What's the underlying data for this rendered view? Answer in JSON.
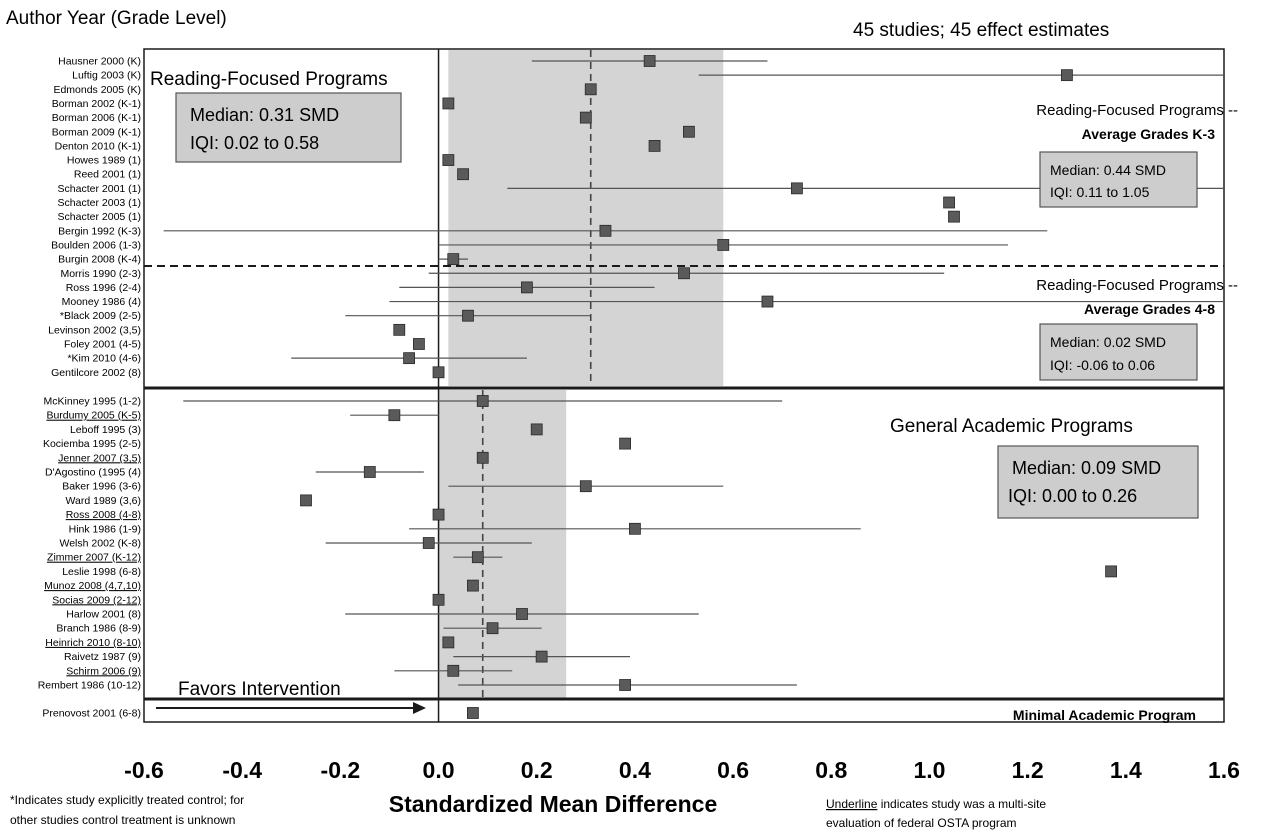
{
  "header": {
    "left_title": "Author Year (Grade Level)",
    "right_title": "45 studies; 45 effect estimates"
  },
  "chart_data": {
    "type": "forest",
    "xlabel": "Standardized Mean Difference",
    "xlim": [
      -0.6,
      1.6
    ],
    "xticks": [
      "-0.6",
      "-0.4",
      "-0.2",
      "0.0",
      "0.2",
      "0.4",
      "0.6",
      "0.8",
      "1.0",
      "1.2",
      "1.4",
      "1.6"
    ],
    "favors_label": "Favors Intervention",
    "sections": [
      {
        "name": "Reading-Focused Programs",
        "median_label": "Median:  0.31 SMD",
        "iqi_label": "IQI: 0.02 to 0.58",
        "median": 0.31,
        "iqi": [
          0.02,
          0.58
        ],
        "subgroups": [
          {
            "title": "Reading-Focused Programs --",
            "subtitle": "Average Grades K-3",
            "median_label": "Median: 0.44 SMD",
            "iqi_label": "IQI: 0.11 to 1.05"
          },
          {
            "title": "Reading-Focused Programs --",
            "subtitle": "Average Grades 4-8",
            "median_label": "Median: 0.02 SMD",
            "iqi_label": "IQI: -0.06 to 0.06"
          }
        ],
        "studies": [
          {
            "label": "Hausner 2000 (K)",
            "effect": 0.43,
            "ci": [
              0.19,
              0.67
            ]
          },
          {
            "label": "Luftig 2003 (K)",
            "effect": 1.28,
            "ci": [
              0.53,
              1.6
            ]
          },
          {
            "label": "Edmonds 2005 (K)",
            "effect": 0.31,
            "ci": null
          },
          {
            "label": "Borman 2002 (K-1)",
            "effect": 0.02,
            "ci": null
          },
          {
            "label": "Borman 2006 (K-1)",
            "effect": 0.3,
            "ci": null
          },
          {
            "label": "Borman 2009 (K-1)",
            "effect": 0.51,
            "ci": null
          },
          {
            "label": "Denton 2010 (K-1)",
            "effect": 0.44,
            "ci": null
          },
          {
            "label": "Howes 1989 (1)",
            "effect": 0.02,
            "ci": null
          },
          {
            "label": "Reed 2001 (1)",
            "effect": 0.05,
            "ci": null
          },
          {
            "label": "Schacter 2001 (1)",
            "effect": 0.73,
            "ci": [
              0.14,
              1.6
            ]
          },
          {
            "label": "Schacter 2003 (1)",
            "effect": 1.04,
            "ci": null
          },
          {
            "label": "Schacter 2005 (1)",
            "effect": 1.05,
            "ci": null
          },
          {
            "label": "Bergin 1992 (K-3)",
            "effect": 0.34,
            "ci": [
              -0.56,
              1.24
            ]
          },
          {
            "label": "Boulden 2006 (1-3)",
            "effect": 0.58,
            "ci": [
              0.0,
              1.16
            ]
          },
          {
            "label": "Burgin 2008 (K-4)",
            "effect": 0.03,
            "ci": [
              0.0,
              0.06
            ]
          },
          {
            "label": "Morris 1990 (2-3)",
            "effect": 0.5,
            "ci": [
              -0.02,
              1.03
            ]
          },
          {
            "label": "Ross 1996 (2-4)",
            "effect": 0.18,
            "ci": [
              -0.08,
              0.44
            ]
          },
          {
            "label": "Mooney 1986 (4)",
            "effect": 0.67,
            "ci": [
              -0.1,
              1.6
            ]
          },
          {
            "label": "*Black 2009 (2-5)",
            "effect": 0.06,
            "ci": [
              -0.19,
              0.31
            ]
          },
          {
            "label": "Levinson 2002 (3,5)",
            "effect": -0.08,
            "ci": null
          },
          {
            "label": "Foley 2001 (4-5)",
            "effect": -0.04,
            "ci": null
          },
          {
            "label": "*Kim 2010 (4-6)",
            "effect": -0.06,
            "ci": [
              -0.3,
              0.18
            ]
          },
          {
            "label": "Gentilcore 2002 (8)",
            "effect": 0.0,
            "ci": null
          }
        ]
      },
      {
        "name": "General Academic Programs",
        "median_label": "Median: 0.09 SMD",
        "iqi_label": "IQI: 0.00 to 0.26",
        "median": 0.09,
        "iqi": [
          0.0,
          0.26
        ],
        "studies": [
          {
            "label": "McKinney 1995 (1-2)",
            "effect": 0.09,
            "ci": [
              -0.52,
              0.7
            ],
            "underline": false
          },
          {
            "label": "Burdumy 2005 (K-5)",
            "effect": -0.09,
            "ci": [
              -0.18,
              0.0
            ],
            "underline": true
          },
          {
            "label": "Leboff 1995 (3)",
            "effect": 0.2,
            "ci": null,
            "underline": false
          },
          {
            "label": "Kociemba 1995 (2-5)",
            "effect": 0.38,
            "ci": null,
            "underline": false
          },
          {
            "label": "Jenner 2007 (3,5)",
            "effect": 0.09,
            "ci": null,
            "underline": true
          },
          {
            "label": "D'Agostino (1995 (4)",
            "effect": -0.14,
            "ci": [
              -0.25,
              -0.03
            ],
            "underline": false
          },
          {
            "label": "Baker 1996 (3-6)",
            "effect": 0.3,
            "ci": [
              0.02,
              0.58
            ],
            "underline": false
          },
          {
            "label": "Ward 1989 (3,6)",
            "effect": -0.27,
            "ci": null,
            "underline": false
          },
          {
            "label": "Ross 2008 (4-8)",
            "effect": 0.0,
            "ci": null,
            "underline": true
          },
          {
            "label": "Hink 1986 (1-9)",
            "effect": 0.4,
            "ci": [
              -0.06,
              0.86
            ],
            "underline": false
          },
          {
            "label": "Welsh 2002 (K-8)",
            "effect": -0.02,
            "ci": [
              -0.23,
              0.19
            ],
            "underline": false
          },
          {
            "label": "Zimmer 2007 (K-12)",
            "effect": 0.08,
            "ci": [
              0.03,
              0.13
            ],
            "underline": true
          },
          {
            "label": "Leslie 1998 (6-8)",
            "effect": 1.37,
            "ci": null,
            "underline": false
          },
          {
            "label": "Munoz 2008 (4,7,10)",
            "effect": 0.07,
            "ci": null,
            "underline": true
          },
          {
            "label": "Socias 2009 (2-12)",
            "effect": 0.0,
            "ci": null,
            "underline": true
          },
          {
            "label": "Harlow 2001 (8)",
            "effect": 0.17,
            "ci": [
              -0.19,
              0.53
            ],
            "underline": false
          },
          {
            "label": "Branch 1986 (8-9)",
            "effect": 0.11,
            "ci": [
              0.01,
              0.21
            ],
            "underline": false
          },
          {
            "label": "Heinrich 2010 (8-10)",
            "effect": 0.02,
            "ci": null,
            "underline": true
          },
          {
            "label": "Raivetz 1987 (9)",
            "effect": 0.21,
            "ci": [
              0.03,
              0.39
            ],
            "underline": false
          },
          {
            "label": "Schirm 2006 (9)",
            "effect": 0.03,
            "ci": [
              -0.09,
              0.15
            ],
            "underline": true
          },
          {
            "label": "Rembert 1986 (10-12)",
            "effect": 0.38,
            "ci": [
              0.04,
              0.73
            ],
            "underline": false
          }
        ]
      },
      {
        "name": "Minimal Academic Program",
        "studies": [
          {
            "label": "Prenovost 2001 (6-8)",
            "effect": 0.07,
            "ci": null
          }
        ]
      }
    ]
  },
  "footnotes": {
    "left_line1": "*Indicates study explicitly treated control; for",
    "left_line2": "other  studies control treatment  is unknown",
    "right_underlined": "Underline",
    "right_line1_rest": " indicates study was a multi-site",
    "right_line2": "evaluation of federal OSTA program"
  },
  "colors": {
    "marker": "#5a5a5a",
    "iqi_band": "#d4d4d4",
    "box_fill": "#cdcdcd",
    "ci_line": "#555555"
  }
}
